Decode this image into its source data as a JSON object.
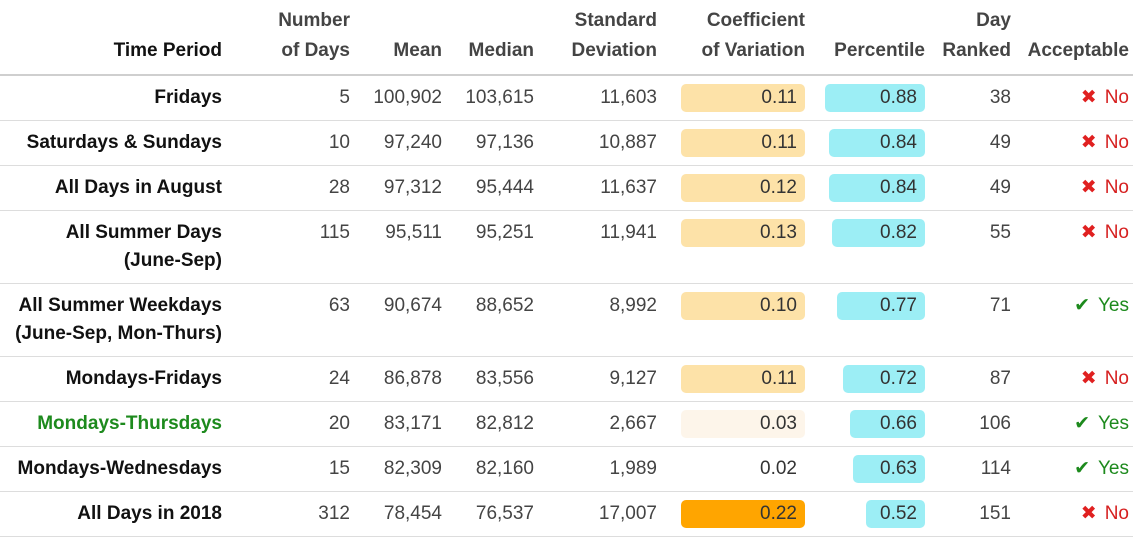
{
  "headers": {
    "period": [
      "Time Period"
    ],
    "days": [
      "Number",
      "of Days"
    ],
    "mean": [
      "Mean"
    ],
    "median": [
      "Median"
    ],
    "sd": [
      "Standard",
      "Deviation"
    ],
    "cv": [
      "Coefficient",
      "of Variation"
    ],
    "pct": [
      "Percentile"
    ],
    "rank": [
      "Day",
      "Ranked"
    ],
    "acc": [
      "Acceptable"
    ]
  },
  "colors": {
    "percentile_bar": "#9ceef5",
    "cv_low": "#fdf5ea",
    "cv_mid": "#fde2a8",
    "cv_high": "#ffa500",
    "no": "#d62020",
    "yes": "#1d8a1d"
  },
  "rows": [
    {
      "period": [
        "Fridays"
      ],
      "days": "5",
      "mean": "100,902",
      "median": "103,615",
      "sd": "11,603",
      "cv": "0.11",
      "cv_value": 0.11,
      "pct": "0.88",
      "pct_value": 0.88,
      "rank": "38",
      "acceptable": "No",
      "highlight": false
    },
    {
      "period": [
        "Saturdays & Sundays"
      ],
      "days": "10",
      "mean": "97,240",
      "median": "97,136",
      "sd": "10,887",
      "cv": "0.11",
      "cv_value": 0.11,
      "pct": "0.84",
      "pct_value": 0.84,
      "rank": "49",
      "acceptable": "No",
      "highlight": false
    },
    {
      "period": [
        "All Days in August"
      ],
      "days": "28",
      "mean": "97,312",
      "median": "95,444",
      "sd": "11,637",
      "cv": "0.12",
      "cv_value": 0.12,
      "pct": "0.84",
      "pct_value": 0.84,
      "rank": "49",
      "acceptable": "No",
      "highlight": false
    },
    {
      "period": [
        "All Summer Days",
        "(June-Sep)"
      ],
      "days": "115",
      "mean": "95,511",
      "median": "95,251",
      "sd": "11,941",
      "cv": "0.13",
      "cv_value": 0.13,
      "pct": "0.82",
      "pct_value": 0.82,
      "rank": "55",
      "acceptable": "No",
      "highlight": false
    },
    {
      "period": [
        "All Summer Weekdays",
        "(June-Sep, Mon-Thurs)"
      ],
      "days": "63",
      "mean": "90,674",
      "median": "88,652",
      "sd": "8,992",
      "cv": "0.10",
      "cv_value": 0.1,
      "pct": "0.77",
      "pct_value": 0.77,
      "rank": "71",
      "acceptable": "Yes",
      "highlight": false
    },
    {
      "period": [
        "Mondays-Fridays"
      ],
      "days": "24",
      "mean": "86,878",
      "median": "83,556",
      "sd": "9,127",
      "cv": "0.11",
      "cv_value": 0.11,
      "pct": "0.72",
      "pct_value": 0.72,
      "rank": "87",
      "acceptable": "No",
      "highlight": false
    },
    {
      "period": [
        "Mondays-Thursdays"
      ],
      "days": "20",
      "mean": "83,171",
      "median": "82,812",
      "sd": "2,667",
      "cv": "0.03",
      "cv_value": 0.03,
      "pct": "0.66",
      "pct_value": 0.66,
      "rank": "106",
      "acceptable": "Yes",
      "highlight": true
    },
    {
      "period": [
        "Mondays-Wednesdays"
      ],
      "days": "15",
      "mean": "82,309",
      "median": "82,160",
      "sd": "1,989",
      "cv": "0.02",
      "cv_value": 0.02,
      "pct": "0.63",
      "pct_value": 0.63,
      "rank": "114",
      "acceptable": "Yes",
      "highlight": false
    },
    {
      "period": [
        "All Days in 2018"
      ],
      "days": "312",
      "mean": "78,454",
      "median": "76,537",
      "sd": "17,007",
      "cv": "0.22",
      "cv_value": 0.22,
      "pct": "0.52",
      "pct_value": 0.52,
      "rank": "151",
      "acceptable": "No",
      "highlight": false
    }
  ]
}
